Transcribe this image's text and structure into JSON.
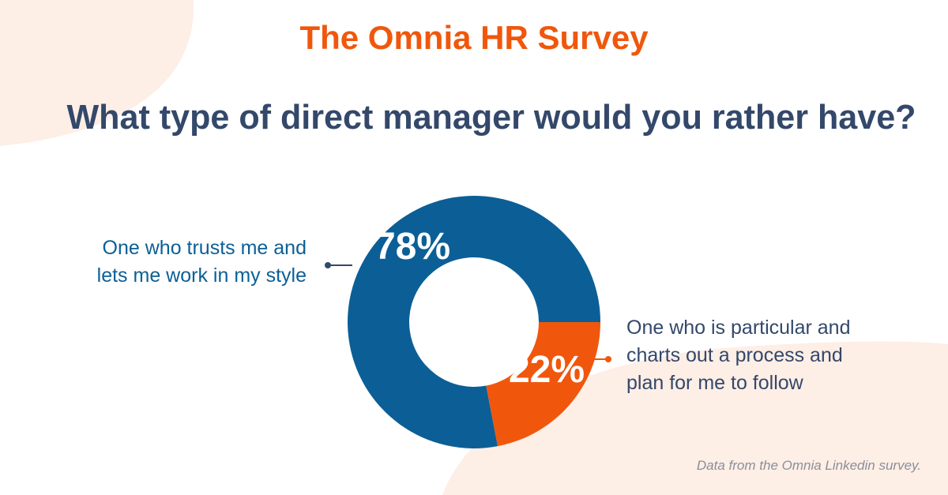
{
  "chart_data": {
    "type": "donut",
    "title": "The Omnia HR Survey",
    "subtitle": "What type of direct manager would you rather have?",
    "categories": [
      "One who trusts me and\nlets me work in my style",
      "One who is particular and\ncharts out a process and\nplan for me to follow"
    ],
    "values": [
      78,
      22
    ],
    "value_labels": [
      "78%",
      "22%"
    ],
    "colors": [
      "#0b5f96",
      "#f0570c"
    ],
    "source": "Data from the Omnia Linkedin survey."
  }
}
